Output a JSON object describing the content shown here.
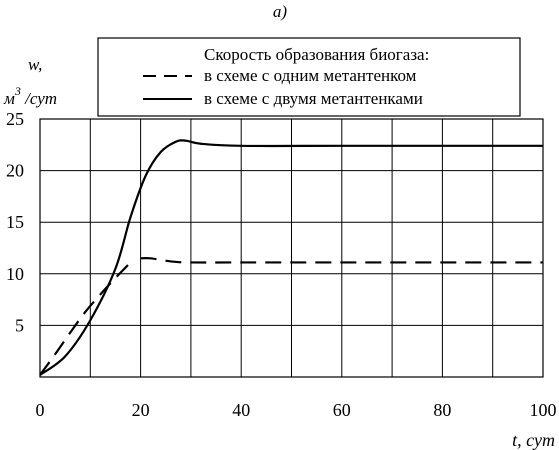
{
  "chart_data": {
    "type": "line",
    "panel_label": "а)",
    "ylabel_top": "w,",
    "ylabel_unit_base": "м",
    "ylabel_unit_exp": "3",
    "ylabel_unit_tail": " /сут",
    "xlabel": "t,  сут",
    "xlim": [
      0,
      100
    ],
    "ylim": [
      0,
      25
    ],
    "xticks": [
      "0",
      "20",
      "40",
      "60",
      "80",
      "100"
    ],
    "yticks": [
      "5",
      "10",
      "15",
      "20",
      "25"
    ],
    "grid": true,
    "legend": {
      "title": "Скорость образования биогаза:",
      "placement": "top-right"
    },
    "series": [
      {
        "name": "в схеме с одним метантенком",
        "style": "dashed",
        "segments": [
          {
            "x": [
              0,
              3,
              6,
              9,
              12,
              15,
              18
            ],
            "y": [
              0.2,
              2.2,
              4.3,
              6.3,
              8.0,
              9.6,
              11.1
            ]
          },
          {
            "x": [
              20,
              22,
              26,
              30,
              40,
              60,
              80,
              100
            ],
            "y": [
              11.5,
              11.5,
              11.2,
              11.1,
              11.1,
              11.1,
              11.1,
              11.1
            ]
          }
        ]
      },
      {
        "name": "в схеме с двумя метантенками",
        "style": "solid",
        "segments": [
          {
            "x": [
              0,
              5,
              10,
              15,
              18,
              21,
              24,
              27,
              29,
              32,
              40,
              60,
              80,
              100
            ],
            "y": [
              0.2,
              2.0,
              5.5,
              10.5,
              15.5,
              19.5,
              21.8,
              22.8,
              22.9,
              22.6,
              22.4,
              22.4,
              22.4,
              22.4
            ]
          }
        ]
      }
    ]
  }
}
